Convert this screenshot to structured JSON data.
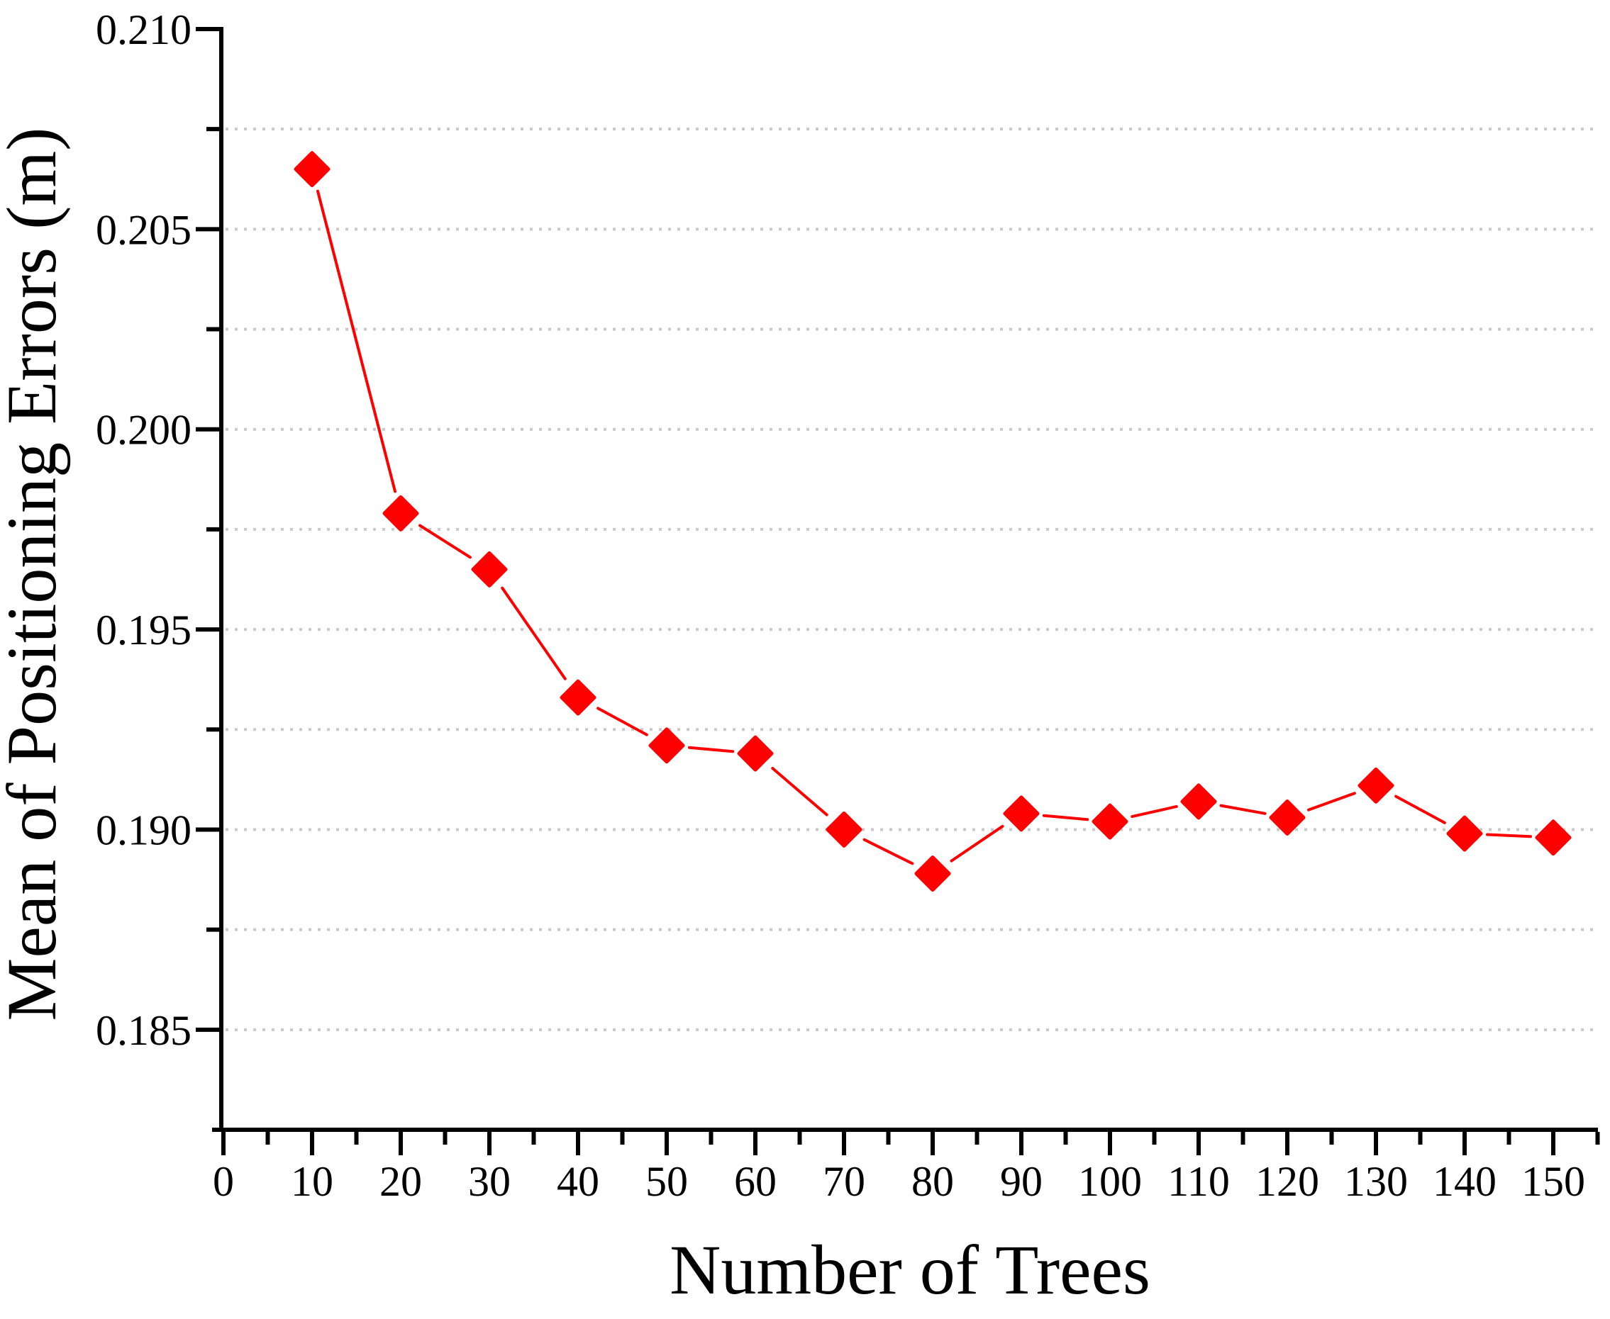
{
  "chart_data": {
    "type": "line",
    "title": "",
    "xlabel": "Number of Trees",
    "ylabel": "Mean of Positioning Errors (m)",
    "series": [
      {
        "name": "Mean of Positioning Errors",
        "x": [
          10,
          20,
          30,
          40,
          50,
          60,
          70,
          80,
          90,
          100,
          110,
          120,
          130,
          140,
          150
        ],
        "y": [
          0.2065,
          0.1979,
          0.1965,
          0.1933,
          0.1921,
          0.1919,
          0.19,
          0.1889,
          0.1904,
          0.1902,
          0.1907,
          0.1903,
          0.1911,
          0.1899,
          0.1898
        ],
        "marker": "diamond",
        "color": "#ff0000"
      }
    ],
    "x_axis": {
      "min": 0,
      "max": 155,
      "major_tick_values": [
        0,
        10,
        20,
        30,
        40,
        50,
        60,
        70,
        80,
        90,
        100,
        110,
        120,
        130,
        140,
        150
      ],
      "tick_labels": [
        "0",
        "10",
        "20",
        "30",
        "40",
        "50",
        "60",
        "70",
        "80",
        "90",
        "100",
        "110",
        "120",
        "130",
        "140",
        "150"
      ],
      "minor_tick_values": [
        5,
        15,
        25,
        35,
        45,
        55,
        65,
        75,
        85,
        95,
        105,
        115,
        125,
        135,
        145,
        155
      ]
    },
    "y_axis": {
      "min": 0.1825,
      "max": 0.21,
      "major_tick_values": [
        0.21,
        0.205,
        0.2,
        0.195,
        0.19,
        0.185
      ],
      "tick_labels": [
        "0.210",
        "0.205",
        "0.200",
        "0.195",
        "0.190",
        "0.185"
      ],
      "minor_tick_values": [
        0.2075,
        0.2025,
        0.1975,
        0.1925,
        0.1875
      ]
    },
    "grid": {
      "horizontal": true,
      "vertical": false,
      "style": "dotted",
      "color": "#c9c9c9",
      "values": [
        0.2075,
        0.205,
        0.2025,
        0.2,
        0.1975,
        0.195,
        0.1925,
        0.19,
        0.1875,
        0.185
      ]
    },
    "legend": "none",
    "axis_color": "#000000",
    "background_color": "#ffffff"
  }
}
